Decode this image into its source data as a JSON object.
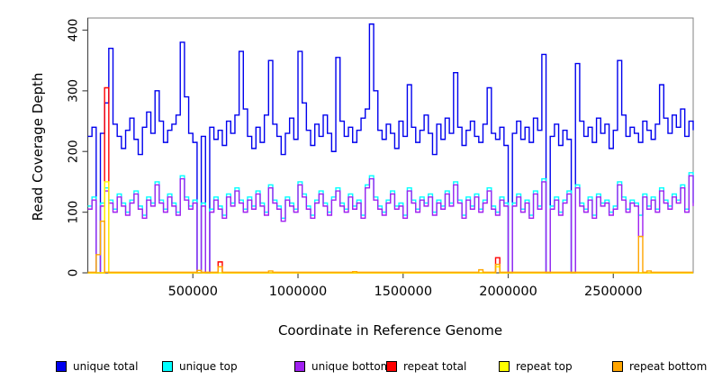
{
  "figure": {
    "ylabel": "Read Coverage Depth",
    "xlabel": "Coordinate in Reference Genome"
  },
  "chart_data": {
    "type": "line",
    "step": true,
    "title": "",
    "xlabel": "Coordinate in Reference Genome",
    "ylabel": "Read Coverage Depth",
    "xlim": [
      0,
      2880000
    ],
    "ylim": [
      0,
      420
    ],
    "x_ticks": [
      500000,
      1000000,
      1500000,
      2000000,
      2500000
    ],
    "y_ticks": [
      0,
      100,
      200,
      300,
      400
    ],
    "grid": false,
    "legend_position": "bottom",
    "n_points": 145,
    "x_step": 20000,
    "axis_color": "#4d4d4d",
    "box_color": "#808080",
    "series": [
      {
        "name": "unique total",
        "color": "#0000EE",
        "values": [
          225,
          240,
          0,
          230,
          280,
          370,
          245,
          225,
          205,
          235,
          255,
          220,
          195,
          240,
          265,
          230,
          300,
          250,
          215,
          235,
          245,
          260,
          380,
          290,
          230,
          215,
          0,
          225,
          0,
          240,
          220,
          235,
          210,
          250,
          230,
          260,
          365,
          270,
          225,
          205,
          240,
          215,
          260,
          350,
          245,
          225,
          195,
          230,
          255,
          220,
          365,
          280,
          235,
          210,
          245,
          225,
          260,
          230,
          200,
          355,
          250,
          225,
          240,
          215,
          235,
          255,
          270,
          410,
          300,
          235,
          220,
          245,
          230,
          205,
          250,
          225,
          310,
          240,
          215,
          235,
          260,
          230,
          195,
          245,
          220,
          255,
          230,
          330,
          240,
          210,
          235,
          250,
          225,
          215,
          245,
          305,
          230,
          220,
          240,
          210,
          0,
          230,
          250,
          220,
          240,
          215,
          255,
          235,
          360,
          0,
          225,
          245,
          210,
          235,
          220,
          0,
          345,
          250,
          225,
          240,
          215,
          255,
          230,
          245,
          205,
          235,
          350,
          260,
          225,
          240,
          230,
          215,
          250,
          235,
          220,
          245,
          310,
          255,
          230,
          260,
          240,
          270,
          225,
          250,
          235
        ]
      },
      {
        "name": "unique top",
        "color": "#00FFFF",
        "values": [
          110,
          125,
          0,
          115,
          140,
          120,
          105,
          130,
          115,
          100,
          120,
          135,
          110,
          95,
          125,
          115,
          150,
          120,
          105,
          130,
          115,
          100,
          160,
          125,
          110,
          120,
          0,
          115,
          0,
          105,
          125,
          110,
          95,
          130,
          115,
          140,
          120,
          105,
          125,
          110,
          135,
          115,
          100,
          145,
          120,
          110,
          90,
          125,
          115,
          105,
          150,
          130,
          110,
          95,
          120,
          135,
          115,
          100,
          125,
          140,
          115,
          105,
          130,
          110,
          120,
          95,
          145,
          160,
          125,
          110,
          100,
          120,
          135,
          110,
          115,
          95,
          140,
          120,
          105,
          125,
          115,
          130,
          100,
          120,
          110,
          135,
          115,
          150,
          120,
          95,
          125,
          110,
          130,
          105,
          120,
          140,
          110,
          100,
          125,
          115,
          0,
          115,
          130,
          105,
          120,
          95,
          135,
          110,
          155,
          0,
          110,
          125,
          100,
          120,
          135,
          0,
          145,
          115,
          105,
          125,
          95,
          130,
          115,
          120,
          100,
          110,
          150,
          125,
          105,
          120,
          115,
          95,
          130,
          110,
          125,
          105,
          140,
          120,
          110,
          130,
          120,
          145,
          105,
          165,
          115
        ]
      },
      {
        "name": "unique bottom",
        "color": "#A020F0",
        "values": [
          105,
          120,
          0,
          110,
          135,
          115,
          100,
          125,
          110,
          95,
          115,
          130,
          105,
          90,
          120,
          110,
          145,
          115,
          100,
          125,
          110,
          95,
          155,
          120,
          105,
          115,
          0,
          110,
          0,
          100,
          120,
          105,
          90,
          125,
          110,
          135,
          115,
          100,
          120,
          105,
          130,
          110,
          95,
          140,
          115,
          105,
          85,
          120,
          110,
          100,
          145,
          125,
          105,
          90,
          115,
          130,
          110,
          95,
          120,
          135,
          110,
          100,
          125,
          105,
          115,
          90,
          140,
          155,
          120,
          105,
          95,
          115,
          130,
          105,
          110,
          90,
          135,
          115,
          100,
          120,
          110,
          125,
          95,
          115,
          105,
          130,
          110,
          145,
          115,
          90,
          120,
          105,
          125,
          100,
          115,
          135,
          105,
          95,
          120,
          110,
          0,
          110,
          125,
          100,
          115,
          90,
          130,
          105,
          150,
          0,
          105,
          120,
          95,
          115,
          130,
          0,
          140,
          110,
          100,
          120,
          90,
          125,
          110,
          115,
          95,
          105,
          145,
          120,
          100,
          115,
          110,
          60,
          125,
          105,
          120,
          100,
          135,
          115,
          105,
          125,
          115,
          140,
          100,
          160,
          110
        ]
      },
      {
        "name": "repeat total",
        "color": "#FF0000",
        "values": {
          "baseline": 0,
          "spikes": {
            "4": 305,
            "31": 18,
            "97": 25
          }
        }
      },
      {
        "name": "repeat top",
        "color": "#FFFF00",
        "values": {
          "baseline": 0,
          "spikes": {
            "4": 150,
            "97": 10
          }
        }
      },
      {
        "name": "repeat bottom",
        "color": "#FFA500",
        "values": {
          "baseline": 1,
          "spikes": {
            "2": 30,
            "3": 85,
            "26": 4,
            "31": 10,
            "43": 3,
            "63": 2,
            "93": 5,
            "97": 14,
            "131": 60,
            "133": 3
          }
        }
      }
    ]
  }
}
